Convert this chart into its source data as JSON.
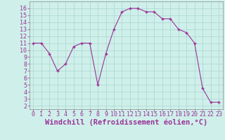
{
  "x": [
    0,
    1,
    2,
    3,
    4,
    5,
    6,
    7,
    8,
    9,
    10,
    11,
    12,
    13,
    14,
    15,
    16,
    17,
    18,
    19,
    20,
    21,
    22,
    23
  ],
  "y": [
    11,
    11,
    9.5,
    7,
    8,
    10.5,
    11,
    11,
    5,
    9.5,
    13,
    15.5,
    16,
    16,
    15.5,
    15.5,
    14.5,
    14.5,
    13,
    12.5,
    11,
    4.5,
    2.5,
    2.5
  ],
  "line_color": "#993399",
  "marker_color": "#993399",
  "bg_color": "#cff0ea",
  "grid_color": "#aad4cc",
  "xlabel": "Windchill (Refroidissement éolien,°C)",
  "xlabel_color": "#993399",
  "ytick_color": "#993399",
  "xtick_color": "#993399",
  "ylim": [
    1.5,
    17
  ],
  "xlim": [
    -0.5,
    23.5
  ],
  "yticks": [
    2,
    3,
    4,
    5,
    6,
    7,
    8,
    9,
    10,
    11,
    12,
    13,
    14,
    15,
    16
  ],
  "xticks": [
    0,
    1,
    2,
    3,
    4,
    5,
    6,
    7,
    8,
    9,
    10,
    11,
    12,
    13,
    14,
    15,
    16,
    17,
    18,
    19,
    20,
    21,
    22,
    23
  ],
  "font_size": 6,
  "xlabel_fontsize": 7.5
}
